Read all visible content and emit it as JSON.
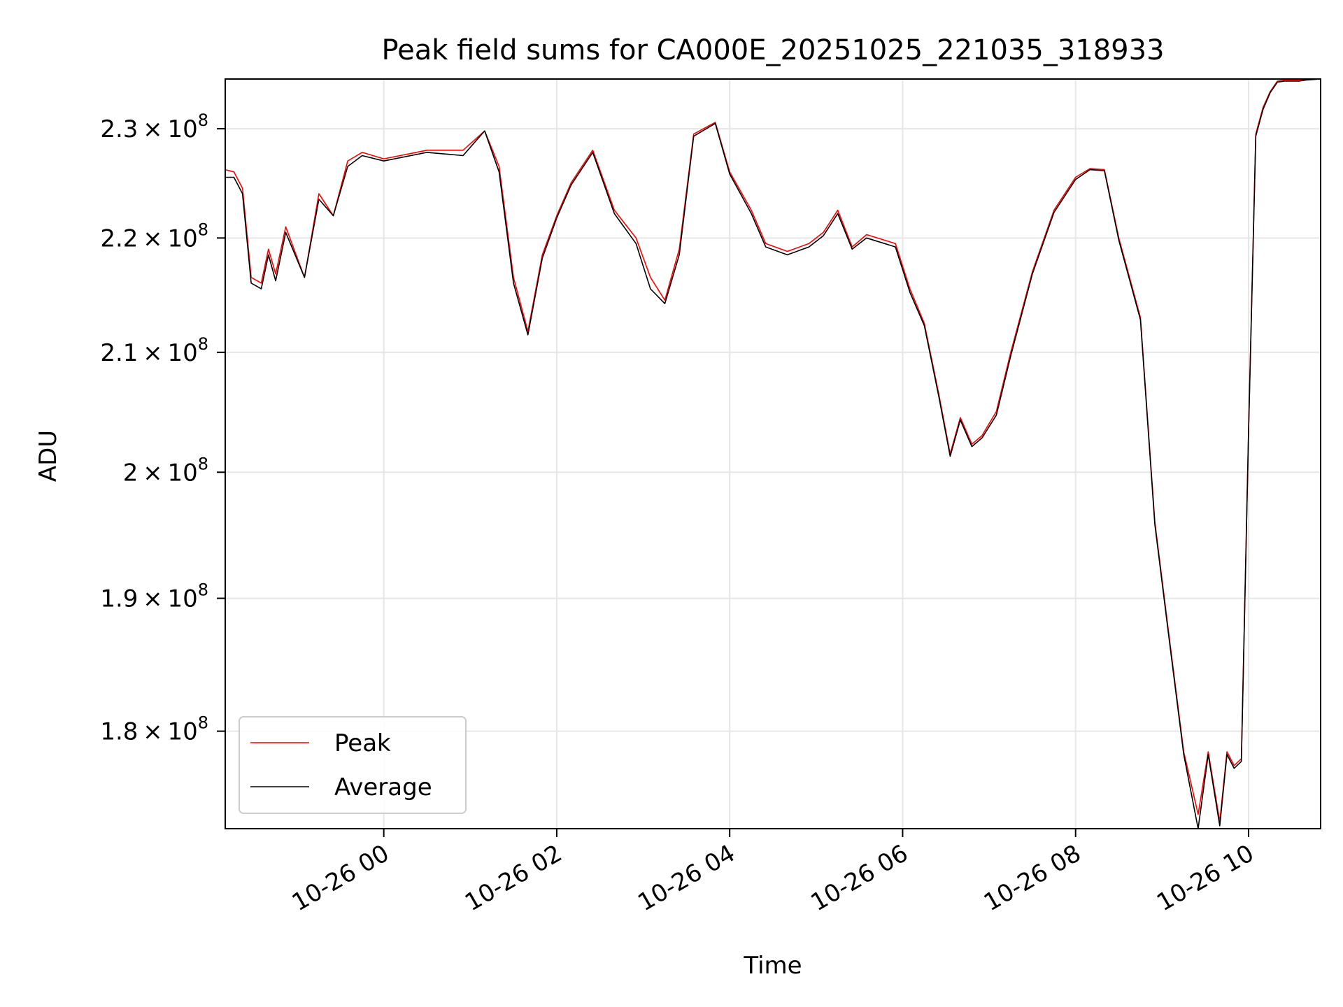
{
  "chart_data": {
    "type": "line",
    "title": "Peak field sums for CA000E_20251025_221035_318933",
    "xlabel": "Time",
    "ylabel": "ADU",
    "xlim": [
      "2025-10-25 22:10",
      "2025-10-26 10:50"
    ],
    "ylim": [
      173000000,
      234700000
    ],
    "yscale": "log",
    "grid": true,
    "legend_position": "lower-left",
    "x_ticks": [
      "2025-10-26 00:00",
      "2025-10-26 02:00",
      "2025-10-26 04:00",
      "2025-10-26 06:00",
      "2025-10-26 08:00",
      "2025-10-26 10:00"
    ],
    "x_tick_labels": [
      "10-26 00",
      "10-26 02",
      "10-26 04",
      "10-26 06",
      "10-26 08",
      "10-26 10"
    ],
    "y_ticks": [
      180000000,
      190000000,
      200000000,
      210000000,
      220000000,
      230000000
    ],
    "y_tick_labels": [
      {
        "mantissa": "1.8",
        "exp": "8"
      },
      {
        "mantissa": "1.9",
        "exp": "8"
      },
      {
        "mantissa": "2",
        "exp": "8"
      },
      {
        "mantissa": "2.1",
        "exp": "8"
      },
      {
        "mantissa": "2.2",
        "exp": "8"
      },
      {
        "mantissa": "2.3",
        "exp": "8"
      }
    ],
    "series": [
      {
        "name": "Peak",
        "color": "#ff0000",
        "x": [
          "2025-10-25 22:10",
          "2025-10-25 22:16",
          "2025-10-25 22:22",
          "2025-10-25 22:28",
          "2025-10-25 22:35",
          "2025-10-25 22:40",
          "2025-10-25 22:45",
          "2025-10-25 22:52",
          "2025-10-25 23:05",
          "2025-10-25 23:15",
          "2025-10-25 23:25",
          "2025-10-25 23:35",
          "2025-10-25 23:45",
          "2025-10-26 00:00",
          "2025-10-26 00:30",
          "2025-10-26 00:55",
          "2025-10-26 01:10",
          "2025-10-26 01:20",
          "2025-10-26 01:30",
          "2025-10-26 01:40",
          "2025-10-26 01:50",
          "2025-10-26 02:00",
          "2025-10-26 02:10",
          "2025-10-26 02:25",
          "2025-10-26 02:40",
          "2025-10-26 02:55",
          "2025-10-26 03:05",
          "2025-10-26 03:15",
          "2025-10-26 03:25",
          "2025-10-26 03:35",
          "2025-10-26 03:50",
          "2025-10-26 04:00",
          "2025-10-26 04:15",
          "2025-10-26 04:25",
          "2025-10-26 04:40",
          "2025-10-26 04:55",
          "2025-10-26 05:05",
          "2025-10-26 05:15",
          "2025-10-26 05:25",
          "2025-10-26 05:35",
          "2025-10-26 05:55",
          "2025-10-26 06:05",
          "2025-10-26 06:15",
          "2025-10-26 06:25",
          "2025-10-26 06:33",
          "2025-10-26 06:40",
          "2025-10-26 06:48",
          "2025-10-26 06:55",
          "2025-10-26 07:05",
          "2025-10-26 07:15",
          "2025-10-26 07:30",
          "2025-10-26 07:45",
          "2025-10-26 08:00",
          "2025-10-26 08:10",
          "2025-10-26 08:20",
          "2025-10-26 08:30",
          "2025-10-26 08:45",
          "2025-10-26 08:55",
          "2025-10-26 09:05",
          "2025-10-26 09:15",
          "2025-10-26 09:25",
          "2025-10-26 09:32",
          "2025-10-26 09:40",
          "2025-10-26 09:45",
          "2025-10-26 09:50",
          "2025-10-26 09:55",
          "2025-10-26 10:00",
          "2025-10-26 10:05",
          "2025-10-26 10:10",
          "2025-10-26 10:15",
          "2025-10-26 10:20",
          "2025-10-26 10:25",
          "2025-10-26 10:30",
          "2025-10-26 10:35",
          "2025-10-26 10:40",
          "2025-10-26 10:50"
        ],
        "y": [
          226200000,
          226000000,
          224500000,
          216500000,
          216000000,
          219000000,
          216800000,
          221000000,
          216500000,
          224000000,
          222000000,
          227000000,
          227800000,
          227200000,
          228000000,
          228000000,
          229800000,
          226500000,
          216500000,
          211800000,
          218500000,
          222000000,
          225000000,
          228000000,
          222500000,
          220000000,
          216500000,
          214500000,
          219000000,
          229500000,
          230600000,
          226000000,
          222500000,
          219500000,
          218800000,
          219500000,
          220500000,
          222500000,
          219200000,
          220300000,
          219500000,
          215500000,
          212500000,
          206500000,
          201500000,
          204500000,
          202300000,
          203000000,
          205000000,
          210000000,
          217000000,
          222500000,
          225500000,
          226300000,
          226200000,
          220000000,
          213000000,
          196000000,
          187000000,
          178500000,
          174000000,
          178500000,
          173500000,
          178500000,
          177500000,
          178000000,
          203500000,
          229500000,
          232000000,
          233500000,
          234500000,
          234600000,
          234600000,
          234600000,
          234650000,
          234700000
        ]
      },
      {
        "name": "Average",
        "color": "#000000",
        "x": [
          "2025-10-25 22:10",
          "2025-10-25 22:16",
          "2025-10-25 22:22",
          "2025-10-25 22:28",
          "2025-10-25 22:35",
          "2025-10-25 22:40",
          "2025-10-25 22:45",
          "2025-10-25 22:52",
          "2025-10-25 23:05",
          "2025-10-25 23:15",
          "2025-10-25 23:25",
          "2025-10-25 23:35",
          "2025-10-25 23:45",
          "2025-10-26 00:00",
          "2025-10-26 00:30",
          "2025-10-26 00:55",
          "2025-10-26 01:10",
          "2025-10-26 01:20",
          "2025-10-26 01:30",
          "2025-10-26 01:40",
          "2025-10-26 01:50",
          "2025-10-26 02:00",
          "2025-10-26 02:10",
          "2025-10-26 02:25",
          "2025-10-26 02:40",
          "2025-10-26 02:55",
          "2025-10-26 03:05",
          "2025-10-26 03:15",
          "2025-10-26 03:25",
          "2025-10-26 03:35",
          "2025-10-26 03:50",
          "2025-10-26 04:00",
          "2025-10-26 04:15",
          "2025-10-26 04:25",
          "2025-10-26 04:40",
          "2025-10-26 04:55",
          "2025-10-26 05:05",
          "2025-10-26 05:15",
          "2025-10-26 05:25",
          "2025-10-26 05:35",
          "2025-10-26 05:55",
          "2025-10-26 06:05",
          "2025-10-26 06:15",
          "2025-10-26 06:25",
          "2025-10-26 06:33",
          "2025-10-26 06:40",
          "2025-10-26 06:48",
          "2025-10-26 06:55",
          "2025-10-26 07:05",
          "2025-10-26 07:15",
          "2025-10-26 07:30",
          "2025-10-26 07:45",
          "2025-10-26 08:00",
          "2025-10-26 08:10",
          "2025-10-26 08:20",
          "2025-10-26 08:30",
          "2025-10-26 08:45",
          "2025-10-26 08:55",
          "2025-10-26 09:05",
          "2025-10-26 09:15",
          "2025-10-26 09:25",
          "2025-10-26 09:32",
          "2025-10-26 09:40",
          "2025-10-26 09:45",
          "2025-10-26 09:50",
          "2025-10-26 09:55",
          "2025-10-26 10:00",
          "2025-10-26 10:05",
          "2025-10-26 10:10",
          "2025-10-26 10:15",
          "2025-10-26 10:20",
          "2025-10-26 10:25",
          "2025-10-26 10:30",
          "2025-10-26 10:35",
          "2025-10-26 10:40",
          "2025-10-26 10:50"
        ],
        "y": [
          225500000,
          225500000,
          224000000,
          216000000,
          215500000,
          218500000,
          216200000,
          220500000,
          216500000,
          223500000,
          222000000,
          226500000,
          227500000,
          227000000,
          227800000,
          227500000,
          229800000,
          226000000,
          216000000,
          211500000,
          218200000,
          221800000,
          224800000,
          227800000,
          222200000,
          219500000,
          215500000,
          214200000,
          218500000,
          229300000,
          230500000,
          225800000,
          222200000,
          219200000,
          218500000,
          219200000,
          220200000,
          222200000,
          219000000,
          220000000,
          219200000,
          215200000,
          212300000,
          206300000,
          201300000,
          204300000,
          202100000,
          202800000,
          204700000,
          209700000,
          216800000,
          222300000,
          225300000,
          226200000,
          226100000,
          219800000,
          212800000,
          195800000,
          186800000,
          178300000,
          173000000,
          178300000,
          173200000,
          178300000,
          177300000,
          177800000,
          203300000,
          229300000,
          231800000,
          233400000,
          234400000,
          234500000,
          234500000,
          234500000,
          234600000,
          234700000
        ]
      }
    ]
  }
}
